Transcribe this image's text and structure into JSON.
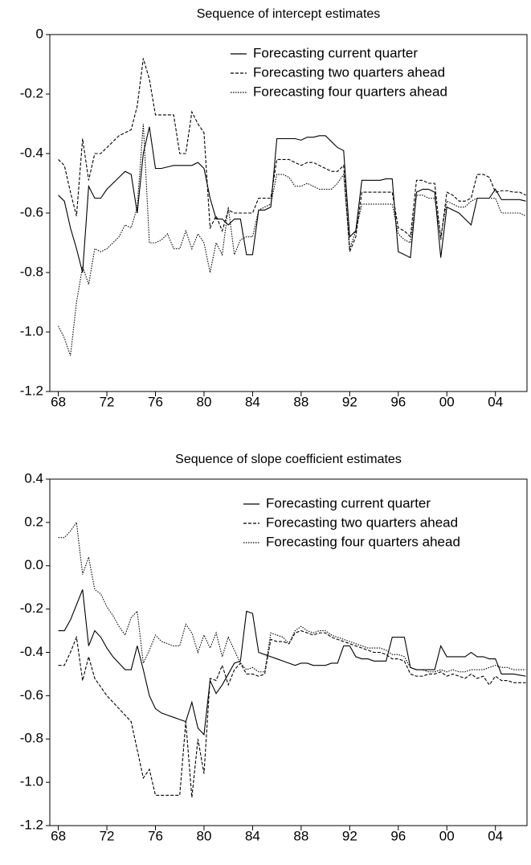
{
  "chart_data": [
    {
      "type": "line",
      "title": "Sequence of intercept estimates",
      "x": [
        1968,
        1968.5,
        1969,
        1969.5,
        1970,
        1970.5,
        1971,
        1971.5,
        1972,
        1972.5,
        1973,
        1973.5,
        1974,
        1974.5,
        1975,
        1975.5,
        1976,
        1976.5,
        1977,
        1977.5,
        1978,
        1978.5,
        1979,
        1979.5,
        1980,
        1980.5,
        1981,
        1981.5,
        1982,
        1982.5,
        1983,
        1983.5,
        1984,
        1984.5,
        1985,
        1985.5,
        1986,
        1986.5,
        1987,
        1987.5,
        1988,
        1988.5,
        1989,
        1989.5,
        1990,
        1990.5,
        1991,
        1991.5,
        1992,
        1992.5,
        1993,
        1993.5,
        1994,
        1994.5,
        1995,
        1995.5,
        1996,
        1996.5,
        1997,
        1997.5,
        1998,
        1998.5,
        1999,
        1999.5,
        2000,
        2000.5,
        2001,
        2001.5,
        2002,
        2002.5,
        2003,
        2003.5,
        2004,
        2004.5,
        2005,
        2005.5,
        2006,
        2006.5
      ],
      "series": [
        {
          "name": "Forecasting current quarter",
          "color": "#000000",
          "dash": "solid",
          "values": [
            -0.54,
            -0.56,
            -0.65,
            -0.72,
            -0.8,
            -0.51,
            -0.55,
            -0.55,
            -0.52,
            -0.5,
            -0.48,
            -0.46,
            -0.47,
            -0.6,
            -0.4,
            -0.31,
            -0.45,
            -0.45,
            -0.445,
            -0.44,
            -0.44,
            -0.44,
            -0.44,
            -0.43,
            -0.45,
            -0.55,
            -0.62,
            -0.62,
            -0.64,
            -0.62,
            -0.62,
            -0.74,
            -0.74,
            -0.59,
            -0.59,
            -0.58,
            -0.35,
            -0.35,
            -0.35,
            -0.35,
            -0.355,
            -0.345,
            -0.345,
            -0.34,
            -0.34,
            -0.36,
            -0.38,
            -0.39,
            -0.68,
            -0.66,
            -0.49,
            -0.49,
            -0.49,
            -0.49,
            -0.485,
            -0.485,
            -0.73,
            -0.74,
            -0.75,
            -0.53,
            -0.52,
            -0.52,
            -0.53,
            -0.75,
            -0.58,
            -0.59,
            -0.6,
            -0.62,
            -0.64,
            -0.55,
            -0.55,
            -0.55,
            -0.52,
            -0.555,
            -0.555,
            -0.555,
            -0.555,
            -0.56
          ]
        },
        {
          "name": "Forecasting two quarters ahead",
          "color": "#000000",
          "dash": "dashed",
          "values": [
            -0.42,
            -0.44,
            -0.53,
            -0.61,
            -0.35,
            -0.49,
            -0.4,
            -0.4,
            -0.38,
            -0.36,
            -0.34,
            -0.33,
            -0.32,
            -0.24,
            -0.08,
            -0.15,
            -0.27,
            -0.27,
            -0.27,
            -0.27,
            -0.4,
            -0.4,
            -0.26,
            -0.3,
            -0.33,
            -0.65,
            -0.61,
            -0.66,
            -0.59,
            -0.6,
            -0.6,
            -0.6,
            -0.6,
            -0.55,
            -0.55,
            -0.55,
            -0.42,
            -0.42,
            -0.42,
            -0.43,
            -0.44,
            -0.43,
            -0.43,
            -0.44,
            -0.45,
            -0.46,
            -0.46,
            -0.44,
            -0.73,
            -0.68,
            -0.53,
            -0.53,
            -0.53,
            -0.53,
            -0.53,
            -0.53,
            -0.65,
            -0.66,
            -0.68,
            -0.49,
            -0.49,
            -0.5,
            -0.5,
            -0.69,
            -0.53,
            -0.54,
            -0.56,
            -0.56,
            -0.55,
            -0.47,
            -0.47,
            -0.48,
            -0.53,
            -0.525,
            -0.525,
            -0.53,
            -0.53,
            -0.54
          ]
        },
        {
          "name": "Forecasting four quarters ahead",
          "color": "#000000",
          "dash": "dotted",
          "values": [
            -0.98,
            -1.02,
            -1.08,
            -0.9,
            -0.78,
            -0.84,
            -0.72,
            -0.73,
            -0.72,
            -0.7,
            -0.68,
            -0.64,
            -0.65,
            -0.58,
            -0.3,
            -0.7,
            -0.7,
            -0.69,
            -0.67,
            -0.72,
            -0.72,
            -0.66,
            -0.72,
            -0.67,
            -0.7,
            -0.8,
            -0.7,
            -0.74,
            -0.58,
            -0.74,
            -0.69,
            -0.68,
            -0.68,
            -0.59,
            -0.58,
            -0.57,
            -0.47,
            -0.47,
            -0.48,
            -0.51,
            -0.51,
            -0.5,
            -0.51,
            -0.52,
            -0.52,
            -0.52,
            -0.5,
            -0.47,
            -0.72,
            -0.66,
            -0.57,
            -0.57,
            -0.57,
            -0.57,
            -0.57,
            -0.57,
            -0.67,
            -0.69,
            -0.7,
            -0.54,
            -0.54,
            -0.55,
            -0.55,
            -0.68,
            -0.56,
            -0.57,
            -0.58,
            -0.58,
            -0.56,
            -0.55,
            -0.55,
            -0.55,
            -0.55,
            -0.6,
            -0.6,
            -0.6,
            -0.6,
            -0.61
          ]
        }
      ],
      "xlim": [
        1967.3,
        2006.6
      ],
      "xticks": [
        {
          "value": 1968,
          "label": "68"
        },
        {
          "value": 1972,
          "label": "72"
        },
        {
          "value": 1976,
          "label": "76"
        },
        {
          "value": 1980,
          "label": "80"
        },
        {
          "value": 1984,
          "label": "84"
        },
        {
          "value": 1988,
          "label": "88"
        },
        {
          "value": 1992,
          "label": "92"
        },
        {
          "value": 1996,
          "label": "96"
        },
        {
          "value": 2000,
          "label": "00"
        },
        {
          "value": 2004,
          "label": "04"
        }
      ],
      "ylim": [
        -1.2,
        0
      ],
      "yticks": [
        0,
        -0.2,
        -0.4,
        -0.6,
        -0.8,
        {
          "value": -1,
          "label": "-1.0"
        },
        -1.2
      ],
      "legend": "top-right"
    },
    {
      "type": "line",
      "title": "Sequence of slope coefficient estimates",
      "x": [
        1968,
        1968.5,
        1969,
        1969.5,
        1970,
        1970.5,
        1971,
        1971.5,
        1972,
        1972.5,
        1973,
        1973.5,
        1974,
        1974.5,
        1975,
        1975.5,
        1976,
        1976.5,
        1977,
        1977.5,
        1978,
        1978.5,
        1979,
        1979.5,
        1980,
        1980.5,
        1981,
        1981.5,
        1982,
        1982.5,
        1983,
        1983.5,
        1984,
        1984.5,
        1985,
        1985.5,
        1986,
        1986.5,
        1987,
        1987.5,
        1988,
        1988.5,
        1989,
        1989.5,
        1990,
        1990.5,
        1991,
        1991.5,
        1992,
        1992.5,
        1993,
        1993.5,
        1994,
        1994.5,
        1995,
        1995.5,
        1996,
        1996.5,
        1997,
        1997.5,
        1998,
        1998.5,
        1999,
        1999.5,
        2000,
        2000.5,
        2001,
        2001.5,
        2002,
        2002.5,
        2003,
        2003.5,
        2004,
        2004.5,
        2005,
        2005.5,
        2006,
        2006.5
      ],
      "series": [
        {
          "name": "Forecasting current quarter",
          "color": "#000000",
          "dash": "solid",
          "values": [
            -0.3,
            -0.3,
            -0.25,
            -0.18,
            -0.11,
            -0.37,
            -0.3,
            -0.33,
            -0.38,
            -0.42,
            -0.45,
            -0.48,
            -0.48,
            -0.37,
            -0.48,
            -0.6,
            -0.66,
            -0.68,
            -0.69,
            -0.7,
            -0.71,
            -0.72,
            -0.63,
            -0.75,
            -0.78,
            -0.53,
            -0.59,
            -0.55,
            -0.5,
            -0.45,
            -0.44,
            -0.21,
            -0.22,
            -0.4,
            -0.41,
            -0.42,
            -0.43,
            -0.44,
            -0.45,
            -0.46,
            -0.45,
            -0.45,
            -0.46,
            -0.46,
            -0.46,
            -0.45,
            -0.45,
            -0.37,
            -0.37,
            -0.42,
            -0.43,
            -0.43,
            -0.44,
            -0.44,
            -0.44,
            -0.33,
            -0.33,
            -0.33,
            -0.47,
            -0.48,
            -0.48,
            -0.48,
            -0.48,
            -0.37,
            -0.42,
            -0.42,
            -0.42,
            -0.42,
            -0.4,
            -0.42,
            -0.42,
            -0.43,
            -0.43,
            -0.5,
            -0.5,
            -0.5,
            -0.505,
            -0.51
          ]
        },
        {
          "name": "Forecasting two quarters ahead",
          "color": "#000000",
          "dash": "dashed",
          "values": [
            -0.46,
            -0.46,
            -0.4,
            -0.33,
            -0.53,
            -0.42,
            -0.52,
            -0.56,
            -0.6,
            -0.63,
            -0.66,
            -0.69,
            -0.72,
            -0.85,
            -0.98,
            -0.94,
            -1.06,
            -1.06,
            -1.06,
            -1.06,
            -1.06,
            -0.72,
            -1.07,
            -0.8,
            -0.96,
            -0.52,
            -0.53,
            -0.46,
            -0.55,
            -0.48,
            -0.45,
            -0.5,
            -0.5,
            -0.51,
            -0.5,
            -0.34,
            -0.35,
            -0.35,
            -0.36,
            -0.31,
            -0.3,
            -0.31,
            -0.32,
            -0.31,
            -0.31,
            -0.33,
            -0.34,
            -0.35,
            -0.36,
            -0.37,
            -0.38,
            -0.39,
            -0.4,
            -0.4,
            -0.41,
            -0.43,
            -0.43,
            -0.44,
            -0.5,
            -0.51,
            -0.51,
            -0.5,
            -0.5,
            -0.49,
            -0.51,
            -0.5,
            -0.51,
            -0.52,
            -0.5,
            -0.52,
            -0.51,
            -0.55,
            -0.51,
            -0.53,
            -0.53,
            -0.54,
            -0.54,
            -0.54
          ]
        },
        {
          "name": "Forecasting four quarters ahead",
          "color": "#000000",
          "dash": "dotted",
          "values": [
            0.13,
            0.13,
            0.16,
            0.2,
            -0.04,
            0.04,
            -0.11,
            -0.13,
            -0.19,
            -0.23,
            -0.28,
            -0.32,
            -0.24,
            -0.21,
            -0.45,
            -0.39,
            -0.32,
            -0.35,
            -0.36,
            -0.37,
            -0.37,
            -0.27,
            -0.31,
            -0.4,
            -0.32,
            -0.38,
            -0.31,
            -0.42,
            -0.33,
            -0.39,
            -0.45,
            -0.48,
            -0.47,
            -0.49,
            -0.49,
            -0.31,
            -0.32,
            -0.33,
            -0.36,
            -0.3,
            -0.28,
            -0.3,
            -0.31,
            -0.3,
            -0.3,
            -0.32,
            -0.33,
            -0.34,
            -0.35,
            -0.36,
            -0.37,
            -0.38,
            -0.38,
            -0.38,
            -0.39,
            -0.41,
            -0.41,
            -0.42,
            -0.47,
            -0.48,
            -0.48,
            -0.49,
            -0.49,
            -0.48,
            -0.49,
            -0.48,
            -0.49,
            -0.49,
            -0.48,
            -0.48,
            -0.48,
            -0.47,
            -0.46,
            -0.47,
            -0.47,
            -0.48,
            -0.48,
            -0.48
          ]
        }
      ],
      "xlim": [
        1967.3,
        2006.6
      ],
      "xticks": [
        {
          "value": 1968,
          "label": "68"
        },
        {
          "value": 1972,
          "label": "72"
        },
        {
          "value": 1976,
          "label": "76"
        },
        {
          "value": 1980,
          "label": "80"
        },
        {
          "value": 1984,
          "label": "84"
        },
        {
          "value": 1988,
          "label": "88"
        },
        {
          "value": 1992,
          "label": "92"
        },
        {
          "value": 1996,
          "label": "96"
        },
        {
          "value": 2000,
          "label": "00"
        },
        {
          "value": 2004,
          "label": "04"
        }
      ],
      "ylim": [
        -1.2,
        0.4
      ],
      "yticks": [
        0.4,
        0.2,
        {
          "value": 0,
          "label": "0.0"
        },
        -0.2,
        -0.4,
        -0.6,
        -0.8,
        {
          "value": -1,
          "label": "-1.0"
        },
        -1.2
      ],
      "legend": "top-right"
    }
  ]
}
